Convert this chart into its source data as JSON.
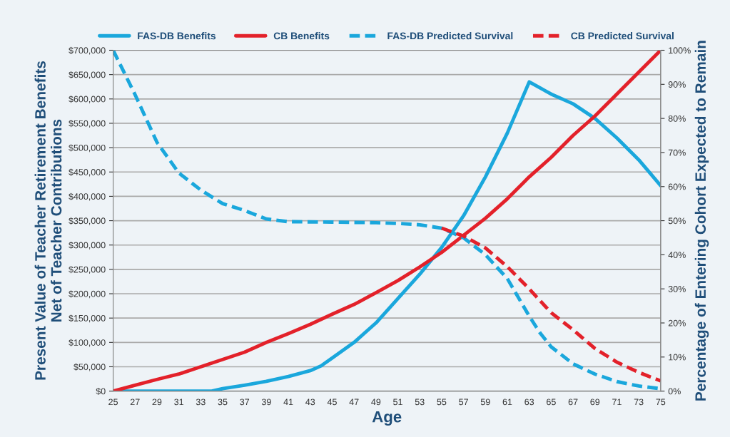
{
  "chart_data": {
    "type": "line",
    "xlabel": "Age",
    "ylabel": "Present Value of Teacher Retirement Benefits\nNet of Teacher Contributions",
    "y2label": "Percentage of Entering Cohort Expected to Remain",
    "xlim": [
      25,
      75
    ],
    "xticks": [
      25,
      27,
      29,
      31,
      33,
      35,
      37,
      39,
      41,
      43,
      45,
      47,
      49,
      51,
      53,
      55,
      57,
      59,
      61,
      63,
      65,
      67,
      69,
      71,
      73,
      75
    ],
    "ylim": [
      0,
      700000
    ],
    "yticks": [
      {
        "value": 0,
        "label": "$0"
      },
      {
        "value": 50000,
        "label": "$50,000"
      },
      {
        "value": 100000,
        "label": "$100,000"
      },
      {
        "value": 150000,
        "label": "$150,000"
      },
      {
        "value": 200000,
        "label": "$200,000"
      },
      {
        "value": 250000,
        "label": "$250,000"
      },
      {
        "value": 300000,
        "label": "$300,000"
      },
      {
        "value": 350000,
        "label": "$350,000"
      },
      {
        "value": 400000,
        "label": "$400,000"
      },
      {
        "value": 450000,
        "label": "$450,000"
      },
      {
        "value": 500000,
        "label": "$500,000"
      },
      {
        "value": 550000,
        "label": "$550,000"
      },
      {
        "value": 600000,
        "label": "$600,000"
      },
      {
        "value": 650000,
        "label": "$650,000"
      },
      {
        "value": 700000,
        "label": "$700,000"
      }
    ],
    "y2lim": [
      0,
      100
    ],
    "y2ticks": [
      {
        "value": 0,
        "label": "0%"
      },
      {
        "value": 10,
        "label": "10%"
      },
      {
        "value": 20,
        "label": "20%"
      },
      {
        "value": 30,
        "label": "30%"
      },
      {
        "value": 40,
        "label": "40%"
      },
      {
        "value": 50,
        "label": "50%"
      },
      {
        "value": 60,
        "label": "60%"
      },
      {
        "value": 70,
        "label": "70%"
      },
      {
        "value": 80,
        "label": "80%"
      },
      {
        "value": 90,
        "label": "90%"
      },
      {
        "value": 100,
        "label": "100%"
      }
    ],
    "grid": "y",
    "legend": "top",
    "series": [
      {
        "name": "FAS-DB Benefits",
        "color": "#1aa7dc",
        "line_style": "solid",
        "x": [
          25,
          27,
          29,
          31,
          33,
          34,
          35,
          37,
          39,
          41,
          43,
          44,
          45,
          47,
          49,
          51,
          53,
          55,
          57,
          59,
          61,
          63,
          65,
          67,
          69,
          71,
          73,
          75
        ],
        "values": [
          0,
          0,
          0,
          0,
          0,
          0,
          5000,
          12000,
          20000,
          30000,
          42000,
          52000,
          68000,
          100000,
          140000,
          190000,
          240000,
          295000,
          360000,
          440000,
          530000,
          635000,
          610000,
          590000,
          560000,
          520000,
          475000,
          422000
        ]
      },
      {
        "name": "CB Benefits",
        "color": "#e3212a",
        "line_style": "solid",
        "x": [
          25,
          27,
          29,
          31,
          33,
          35,
          37,
          39,
          41,
          43,
          45,
          47,
          49,
          51,
          53,
          55,
          57,
          59,
          61,
          63,
          65,
          67,
          69,
          71,
          73,
          75
        ],
        "values": [
          0,
          12000,
          24000,
          35000,
          50000,
          65000,
          80000,
          100000,
          118000,
          137000,
          158000,
          178000,
          202000,
          227000,
          255000,
          285000,
          320000,
          355000,
          395000,
          440000,
          480000,
          525000,
          565000,
          610000,
          655000,
          700000
        ]
      },
      {
        "name": "FAS-DB Predicted Survival",
        "color": "#1aa7dc",
        "line_style": "dashed",
        "axis": "y2",
        "x": [
          25,
          27,
          29,
          31,
          33,
          35,
          37,
          39,
          41,
          45,
          49,
          51,
          53,
          55,
          57,
          59,
          61,
          63,
          64,
          65,
          67,
          69,
          71,
          73,
          75
        ],
        "values": [
          100,
          87,
          73,
          64,
          59,
          55,
          53,
          50.5,
          49.7,
          49.6,
          49.4,
          49.2,
          48.8,
          47.8,
          45,
          40,
          33,
          22,
          17,
          13,
          8,
          5,
          2.8,
          1.5,
          0.7
        ]
      },
      {
        "name": "CB Predicted Survival",
        "color": "#e3212a",
        "line_style": "dashed",
        "axis": "y2",
        "x": [
          55,
          57,
          59,
          61,
          63,
          65,
          67,
          69,
          71,
          73,
          75
        ],
        "values": [
          47.8,
          45.5,
          42,
          36.5,
          30,
          23,
          18,
          12.5,
          8.5,
          5.5,
          3
        ]
      }
    ]
  }
}
